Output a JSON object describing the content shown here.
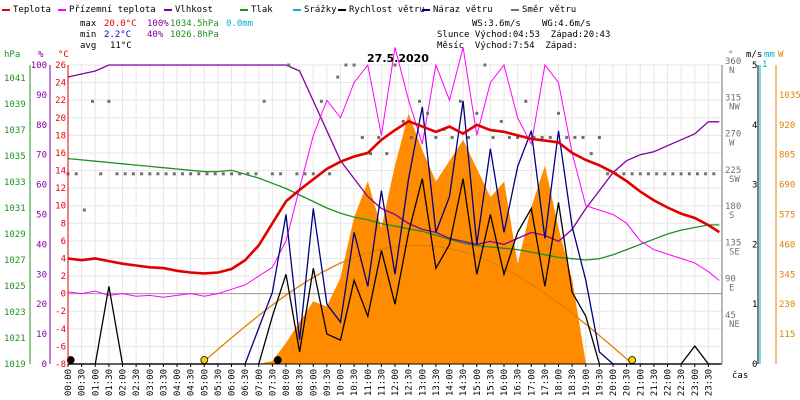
{
  "chart_data": {
    "type": "line",
    "title": "27.5.2020",
    "legend": [
      {
        "label": "Teplota",
        "color": "#e00000"
      },
      {
        "label": "Přízemní teplota",
        "color": "#ff00ff"
      },
      {
        "label": "Vlhkost",
        "color": "#8000a0"
      },
      {
        "label": "Tlak",
        "color": "#209020"
      },
      {
        "label": "Srážky",
        "color": "#00b0d0"
      },
      {
        "label": "Rychlost větru",
        "color": "#000000"
      },
      {
        "label": "Náraz větru",
        "color": "#000080"
      },
      {
        "label": "Směr větru",
        "color": "#707070"
      }
    ],
    "stats": {
      "max_label": "max",
      "min_label": "min",
      "avg_label": "avg",
      "max_temp": "20.0°C",
      "max_hum": "100%",
      "max_press": "1034.5hPa",
      "max_rain": "0.0mm",
      "min_temp": "2.2°C",
      "min_hum": "40%",
      "min_press": "1026.8hPa",
      "avg_temp": "11°C",
      "ws": "WS:3.6m/s",
      "wg": "WG:4.6m/s",
      "sun": "Slunce Východ:04:53  Západ:20:43",
      "moon": "Měsíc  Východ:7:54  Západ:"
    },
    "axes": {
      "hpa_unit": "hPa",
      "pct_unit": "%",
      "temp_unit": "°C",
      "deg_unit": "°",
      "ms_unit": "m/s",
      "mm_unit": "mm",
      "w_unit": "W",
      "time_unit": "čas",
      "hpa_ticks": [
        "1041",
        "1039",
        "1037",
        "1035",
        "1033",
        "1031",
        "1029",
        "1027",
        "1025",
        "1023",
        "1021",
        "1019"
      ],
      "pct_ticks": [
        "100",
        "90",
        "80",
        "70",
        "60",
        "50",
        "40",
        "30",
        "20",
        "10",
        "0"
      ],
      "temp_ticks": [
        "26",
        "24",
        "22",
        "20",
        "18",
        "16",
        "14",
        "12",
        "10",
        "8",
        "6",
        "4",
        "2",
        "0",
        "-2",
        "-4",
        "-6",
        "-8"
      ],
      "dir_ticks": [
        {
          "deg": "360",
          "dir": "N"
        },
        {
          "deg": "315",
          "dir": "NW"
        },
        {
          "deg": "270",
          "dir": "W"
        },
        {
          "deg": "225",
          "dir": "SW"
        },
        {
          "deg": "180",
          "dir": "S"
        },
        {
          "deg": "135",
          "dir": "SE"
        },
        {
          "deg": "90",
          "dir": "E"
        },
        {
          "deg": "45",
          "dir": "NE"
        }
      ],
      "ms_ticks": [
        "5",
        "4",
        "3",
        "2",
        "1",
        "0"
      ],
      "mm_top": "1",
      "w_ticks": [
        "1035",
        "920",
        "805",
        "690",
        "575",
        "460",
        "345",
        "230",
        "115"
      ],
      "x_ticks": [
        "00:00",
        "00:30",
        "01:00",
        "01:30",
        "02:00",
        "02:30",
        "03:00",
        "03:30",
        "04:00",
        "04:30",
        "05:00",
        "05:30",
        "06:00",
        "06:30",
        "07:00",
        "07:30",
        "08:00",
        "08:30",
        "09:00",
        "09:30",
        "10:00",
        "10:30",
        "11:00",
        "11:30",
        "12:00",
        "12:30",
        "13:00",
        "13:30",
        "14:00",
        "14:30",
        "15:00",
        "15:30",
        "16:00",
        "16:30",
        "17:00",
        "17:30",
        "18:00",
        "18:30",
        "19:00",
        "19:30",
        "20:00",
        "20:30",
        "21:00",
        "21:30",
        "22:00",
        "22:30",
        "23:00",
        "23:30"
      ]
    },
    "xlim_hours": [
      0,
      24
    ],
    "ylim_temp": [
      -8,
      26
    ],
    "ylim_pct": [
      0,
      100
    ],
    "ylim_hpa": [
      1019,
      1042
    ],
    "ylim_ms": [
      0,
      5
    ],
    "ylim_wm2": [
      0,
      1150
    ],
    "series": {
      "temperature": {
        "x": [
          0,
          0.5,
          1,
          1.5,
          2,
          2.5,
          3,
          3.5,
          4,
          4.5,
          5,
          5.5,
          6,
          6.5,
          7,
          7.5,
          8,
          8.5,
          9,
          9.5,
          10,
          10.5,
          11,
          11.5,
          12,
          12.5,
          13,
          13.5,
          14,
          14.5,
          15,
          15.5,
          16,
          16.5,
          17,
          17.5,
          18,
          18.5,
          19,
          19.5,
          20,
          20.5,
          21,
          21.5,
          22,
          22.5,
          23,
          23.5,
          23.9
        ],
        "y": [
          4,
          3.8,
          4,
          3.7,
          3.4,
          3.2,
          3,
          2.9,
          2.6,
          2.4,
          2.3,
          2.4,
          2.8,
          3.8,
          5.5,
          8,
          10.5,
          11.8,
          13,
          14.2,
          15,
          15.6,
          16,
          17.5,
          18.6,
          19.6,
          19,
          18.4,
          19,
          18.2,
          19.2,
          18.6,
          18.4,
          18,
          17.6,
          17.4,
          17.2,
          16,
          15.2,
          14.6,
          13.8,
          12.8,
          11.6,
          10.6,
          9.8,
          9.1,
          8.6,
          7.8,
          7
        ]
      },
      "ground_temp": {
        "x": [
          0,
          0.5,
          1,
          1.5,
          2,
          2.5,
          3,
          3.5,
          4,
          4.5,
          5,
          5.5,
          6,
          6.5,
          7,
          7.5,
          8,
          8.5,
          9,
          9.5,
          10,
          10.5,
          11,
          11.5,
          12,
          12.5,
          13,
          13.5,
          14,
          14.5,
          15,
          15.5,
          16,
          16.5,
          17,
          17.5,
          18,
          18.5,
          19,
          19.5,
          20,
          20.5,
          21,
          21.5,
          22,
          22.5,
          23,
          23.5,
          23.9
        ],
        "y": [
          0.2,
          0,
          0.3,
          -0.2,
          0,
          -0.3,
          -0.2,
          -0.4,
          -0.2,
          0,
          -0.3,
          0,
          0.5,
          1,
          2,
          3,
          6,
          12,
          18,
          22,
          20,
          24,
          26,
          18,
          28,
          22,
          17,
          26,
          22,
          28,
          18,
          24,
          26,
          20,
          17,
          26,
          24,
          16,
          10,
          9.5,
          9,
          8,
          6,
          5,
          4.5,
          4,
          3.5,
          2.5,
          1.5
        ]
      },
      "humidity": {
        "x": [
          0,
          0.5,
          1,
          1.5,
          2,
          2.5,
          3,
          3.5,
          4,
          4.5,
          5,
          5.5,
          6,
          6.5,
          7,
          7.5,
          8,
          8.5,
          9,
          9.5,
          10,
          10.5,
          11,
          11.5,
          12,
          12.5,
          13,
          13.5,
          14,
          14.5,
          15,
          15.5,
          16,
          16.5,
          17,
          17.5,
          18,
          18.5,
          19,
          19.5,
          20,
          20.5,
          21,
          21.5,
          22,
          22.5,
          23,
          23.5,
          23.9
        ],
        "y": [
          96,
          97,
          98,
          100,
          100,
          100,
          100,
          100,
          100,
          100,
          100,
          100,
          100,
          100,
          100,
          100,
          100,
          98,
          88,
          78,
          68,
          62,
          56,
          52,
          50,
          47,
          45,
          44,
          42,
          41,
          40,
          41,
          40,
          42,
          44,
          43,
          41,
          45,
          52,
          58,
          64,
          68,
          70,
          71,
          73,
          75,
          77,
          81,
          81
        ]
      },
      "pressure": {
        "x": [
          0,
          0.5,
          1,
          1.5,
          2,
          2.5,
          3,
          3.5,
          4,
          4.5,
          5,
          5.5,
          6,
          6.5,
          7,
          7.5,
          8,
          8.5,
          9,
          9.5,
          10,
          10.5,
          11,
          11.5,
          12,
          12.5,
          13,
          13.5,
          14,
          14.5,
          15,
          15.5,
          16,
          16.5,
          17,
          17.5,
          18,
          18.5,
          19,
          19.5,
          20,
          20.5,
          21,
          21.5,
          22,
          22.5,
          23,
          23.5,
          23.9
        ],
        "y": [
          1034.8,
          1034.7,
          1034.6,
          1034.5,
          1034.4,
          1034.3,
          1034.2,
          1034.1,
          1034,
          1033.9,
          1033.8,
          1033.8,
          1033.9,
          1033.6,
          1033.3,
          1032.9,
          1032.5,
          1032,
          1031.5,
          1031,
          1030.6,
          1030.3,
          1030.1,
          1029.8,
          1029.6,
          1029.4,
          1029.2,
          1028.9,
          1028.6,
          1028.3,
          1028.1,
          1028,
          1027.9,
          1027.8,
          1027.6,
          1027.4,
          1027.2,
          1027.1,
          1027,
          1027.1,
          1027.4,
          1027.8,
          1028.2,
          1028.6,
          1029,
          1029.3,
          1029.5,
          1029.7,
          1029.7
        ]
      },
      "wind_speed": {
        "x": [
          0,
          1,
          1.5,
          2,
          2.5,
          3,
          3.5,
          4,
          4.5,
          5,
          5.5,
          6,
          6.5,
          7,
          7.5,
          8,
          8.5,
          9,
          9.5,
          10,
          10.5,
          11,
          11.5,
          12,
          12.5,
          13,
          13.5,
          14,
          14.5,
          15,
          15.5,
          16,
          16.5,
          17,
          17.5,
          18,
          18.5,
          19,
          19.5,
          20,
          22.5,
          23,
          23.5,
          23.9
        ],
        "y": [
          0,
          0,
          1.3,
          0,
          0,
          0,
          0,
          0,
          0,
          0,
          0,
          0,
          0,
          0,
          0.8,
          1.5,
          0.2,
          1.6,
          0.5,
          0.4,
          1.4,
          0.8,
          1.9,
          1.0,
          2.2,
          3.1,
          1.6,
          2.0,
          3.1,
          1.5,
          2.5,
          1.5,
          2.2,
          2.6,
          1.3,
          2.7,
          1.2,
          0.8,
          0,
          0,
          0,
          0.3,
          0,
          0
        ]
      },
      "wind_gust": {
        "x": [
          0,
          6.5,
          7.5,
          8,
          8.5,
          9,
          9.5,
          10,
          10.5,
          11,
          11.5,
          12,
          12.5,
          13,
          13.5,
          14,
          14.5,
          15,
          15.5,
          16,
          16.5,
          17,
          17.5,
          18,
          18.5,
          19,
          19.5,
          20,
          24
        ],
        "y": [
          0,
          0,
          1.2,
          2.5,
          0.4,
          2.6,
          1.0,
          0.7,
          2.2,
          1.3,
          2.9,
          1.5,
          3.1,
          4.3,
          2.2,
          2.8,
          4.4,
          2.0,
          3.6,
          2.2,
          3.3,
          3.9,
          2.1,
          3.9,
          2.3,
          1.4,
          0.2,
          0,
          0
        ]
      },
      "wind_dir": {
        "x": [
          0,
          0.3,
          0.6,
          0.9,
          1.2,
          1.5,
          1.8,
          2.1,
          2.4,
          2.7,
          3,
          3.3,
          3.6,
          3.9,
          4.2,
          4.5,
          4.8,
          5.1,
          5.4,
          5.7,
          6,
          6.3,
          6.6,
          6.9,
          7.2,
          7.5,
          7.8,
          8.1,
          8.4,
          8.7,
          9,
          9.3,
          9.6,
          9.9,
          10.2,
          10.5,
          10.8,
          11.1,
          11.4,
          11.7,
          12,
          12.3,
          12.6,
          12.9,
          13.2,
          13.5,
          13.8,
          14.1,
          14.4,
          14.7,
          15,
          15.3,
          15.6,
          15.9,
          16.2,
          16.5,
          16.8,
          17.1,
          17.4,
          17.7,
          18,
          18.3,
          18.6,
          18.9,
          19.2,
          19.5,
          19.8,
          20.1,
          20.4,
          20.7,
          21,
          21.3,
          21.6,
          21.9,
          22.2,
          22.5,
          22.8,
          23.1,
          23.4,
          23.7
        ],
        "y": [
          225,
          225,
          180,
          315,
          225,
          315,
          225,
          225,
          225,
          225,
          225,
          225,
          225,
          225,
          225,
          225,
          225,
          225,
          225,
          225,
          225,
          225,
          225,
          225,
          315,
          225,
          225,
          360,
          225,
          225,
          225,
          315,
          225,
          345,
          360,
          360,
          270,
          250,
          270,
          250,
          360,
          290,
          270,
          315,
          300,
          270,
          280,
          270,
          315,
          270,
          300,
          360,
          270,
          290,
          270,
          270,
          315,
          270,
          270,
          270,
          300,
          270,
          270,
          270,
          250,
          270,
          225,
          225,
          225,
          225,
          225,
          225,
          225,
          225,
          225,
          225,
          225,
          225,
          225,
          225
        ]
      },
      "solar": {
        "x": [
          5,
          5.5,
          6,
          6.5,
          7,
          7.5,
          8,
          8.5,
          9,
          9.5,
          10,
          10.5,
          11,
          11.5,
          12,
          12.5,
          13,
          13.5,
          14,
          14.5,
          15,
          15.5,
          16,
          16.5,
          17,
          17.5,
          18,
          18.5,
          19
        ],
        "y": [
          0,
          0,
          0,
          0,
          0,
          10,
          80,
          160,
          240,
          220,
          330,
          560,
          700,
          520,
          760,
          960,
          820,
          700,
          780,
          860,
          750,
          640,
          700,
          380,
          600,
          760,
          520,
          320,
          0
        ]
      }
    },
    "sun_curve": {
      "rise_h": 4.88,
      "set_h": 20.72,
      "peak_c": 5.5
    },
    "markers": [
      {
        "x_h": 0.1,
        "fill": "#000000"
      },
      {
        "x_h": 5.0,
        "fill": "#ffd000"
      },
      {
        "x_h": 7.7,
        "fill": "#000000"
      },
      {
        "x_h": 20.7,
        "fill": "#ffd000"
      }
    ]
  }
}
